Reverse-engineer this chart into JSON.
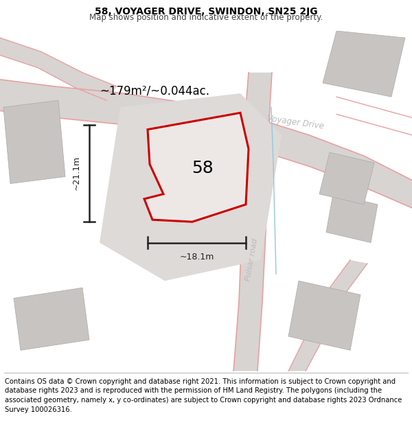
{
  "title": "58, VOYAGER DRIVE, SWINDON, SN25 2JG",
  "subtitle": "Map shows position and indicative extent of the property.",
  "footer": "Contains OS data © Crown copyright and database right 2021. This information is subject to Crown copyright and database rights 2023 and is reproduced with the permission of HM Land Registry. The polygons (including the associated geometry, namely x, y co-ordinates) are subject to Crown copyright and database rights 2023 Ordnance Survey 100026316.",
  "area_label": "~179m²/~0.044ac.",
  "width_label": "~18.1m",
  "height_label": "~21.1m",
  "property_number": "58",
  "plot_border": "#cc0000",
  "dim_line_color": "#222222",
  "road_gray": "#d8d4d2",
  "building_gray": "#c8c4c2",
  "road_edge_pink": "#e8a0a0",
  "road_label_gray": "#bbbbbb",
  "map_bg": "#f5f0ef",
  "title_fontsize": 10,
  "subtitle_fontsize": 8.5,
  "footer_fontsize": 7.2,
  "area_fontsize": 12,
  "number_fontsize": 18,
  "dim_fontsize": 9
}
